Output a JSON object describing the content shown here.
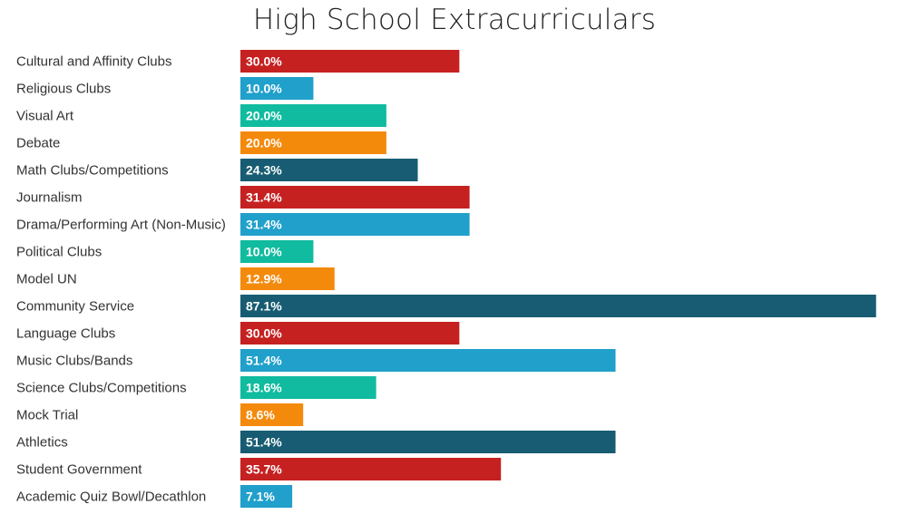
{
  "chart_data": {
    "type": "bar",
    "orientation": "horizontal",
    "title": "High School Extracurriculars",
    "xlabel": "",
    "ylabel": "",
    "xlim": [
      0,
      100
    ],
    "grid": false,
    "legend": "none",
    "categories": [
      "Cultural and Affinity Clubs",
      "Religious Clubs",
      "Visual Art",
      "Debate",
      "Math Clubs/Competitions",
      "Journalism",
      "Drama/Performing Art (Non-Music)",
      "Political Clubs",
      "Model UN",
      "Community Service",
      "Language Clubs",
      "Music Clubs/Bands",
      "Science Clubs/Competitions",
      "Mock Trial",
      "Athletics",
      "Student Government",
      "Academic Quiz Bowl/Decathlon"
    ],
    "values": [
      30.0,
      10.0,
      20.0,
      20.0,
      24.3,
      31.4,
      31.4,
      10.0,
      12.9,
      87.1,
      30.0,
      51.4,
      18.6,
      8.6,
      51.4,
      35.7,
      7.1
    ],
    "value_labels": [
      "30.0%",
      "10.0%",
      "20.0%",
      "20.0%",
      "24.3%",
      "31.4%",
      "31.4%",
      "10.0%",
      "12.9%",
      "87.1%",
      "30.0%",
      "51.4%",
      "18.6%",
      "8.6%",
      "51.4%",
      "35.7%",
      "7.1%"
    ],
    "color_cycle": [
      "#c62121",
      "#20a0cb",
      "#10bb9f",
      "#f48a0c",
      "#175c72"
    ]
  }
}
